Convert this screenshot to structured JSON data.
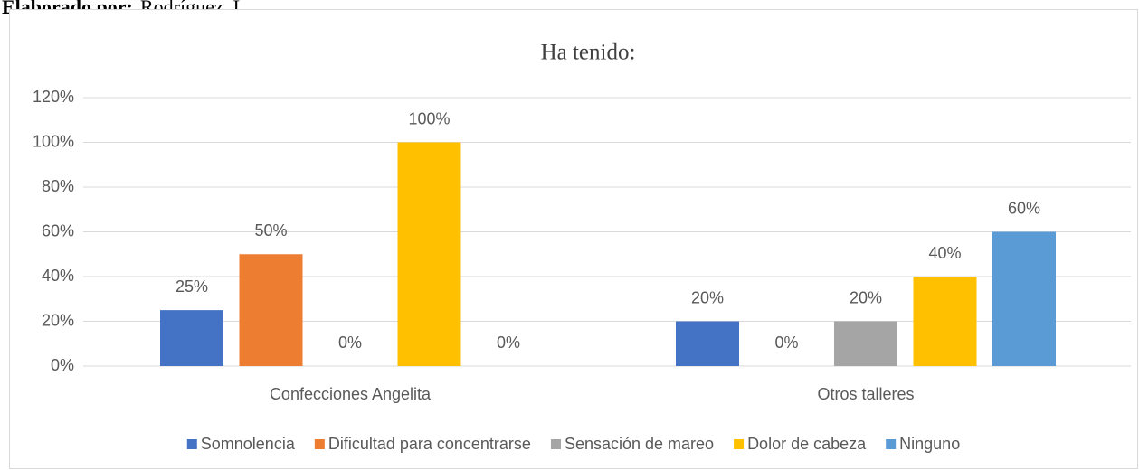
{
  "source_label": "Elaborado por:",
  "source": "Rodríguez, L.",
  "chart_data": {
    "type": "bar",
    "title": "Ha tenido:",
    "categories": [
      "Confecciones Angelita",
      "Otros talleres"
    ],
    "series": [
      {
        "name": "Somnolencia",
        "color": "#4472c4",
        "values": [
          25,
          20
        ],
        "value_labels": [
          "25%",
          "20%"
        ]
      },
      {
        "name": "Dificultad para concentrarse",
        "color": "#ed7d31",
        "values": [
          50,
          0
        ],
        "value_labels": [
          "50%",
          "0%"
        ]
      },
      {
        "name": "Sensación de mareo",
        "color": "#a5a5a5",
        "values": [
          0,
          20
        ],
        "value_labels": [
          "0%",
          "20%"
        ]
      },
      {
        "name": "Dolor de cabeza",
        "color": "#ffc000",
        "values": [
          100,
          40
        ],
        "value_labels": [
          "100%",
          "40%"
        ]
      },
      {
        "name": "Ninguno",
        "color": "#5b9bd5",
        "values": [
          0,
          60
        ],
        "value_labels": [
          "0%",
          "60%"
        ]
      }
    ],
    "ylim": [
      0,
      120
    ],
    "yticks": [
      {
        "value": 0,
        "label": "0%"
      },
      {
        "value": 20,
        "label": "20%"
      },
      {
        "value": 40,
        "label": "40%"
      },
      {
        "value": 60,
        "label": "60%"
      },
      {
        "value": 80,
        "label": "80%"
      },
      {
        "value": 100,
        "label": "100%"
      },
      {
        "value": 120,
        "label": "120%"
      }
    ],
    "grid": true,
    "legend": "bottom"
  }
}
